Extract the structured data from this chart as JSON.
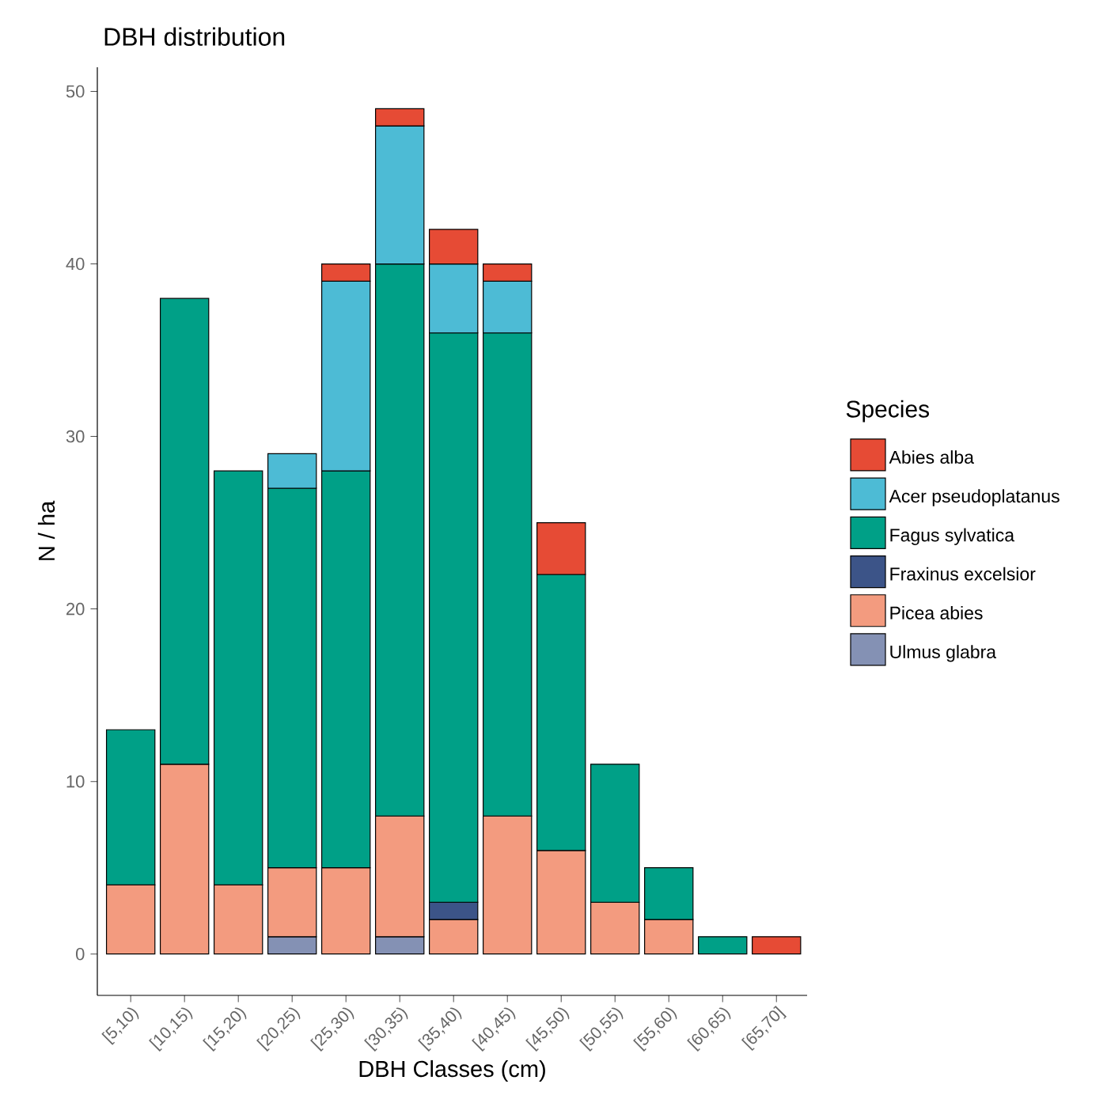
{
  "chart_data": {
    "type": "bar",
    "title": "DBH distribution",
    "xlabel": "DBH Classes (cm)",
    "ylabel": "N / ha",
    "legend_title": "Species",
    "categories": [
      "[5,10)",
      "[10,15)",
      "[15,20)",
      "[20,25)",
      "[25,30)",
      "[30,35)",
      "[35,40)",
      "[40,45)",
      "[45,50)",
      "[50,55)",
      "[55,60)",
      "[60,65)",
      "[65,70]"
    ],
    "stacked": true,
    "legend": "right",
    "grid": false,
    "ylim": [
      -2.4,
      51.4
    ],
    "yticks": [
      0,
      10,
      20,
      30,
      40,
      50
    ],
    "series": [
      {
        "name": "Ulmus glabra",
        "color": "#8491b4",
        "values": [
          null,
          null,
          null,
          1,
          null,
          1,
          null,
          null,
          null,
          null,
          null,
          null,
          null
        ]
      },
      {
        "name": "Picea abies",
        "color": "#f39b7f",
        "values": [
          4,
          11,
          4,
          4,
          5,
          7,
          2,
          8,
          6,
          3,
          2,
          null,
          null
        ]
      },
      {
        "name": "Fraxinus excelsior",
        "color": "#3c5488",
        "values": [
          null,
          null,
          null,
          null,
          null,
          null,
          1,
          null,
          null,
          null,
          null,
          null,
          null
        ]
      },
      {
        "name": "Fagus sylvatica",
        "color": "#00a087",
        "values": [
          9,
          27,
          24,
          22,
          23,
          32,
          33,
          28,
          16,
          8,
          3,
          1,
          null
        ]
      },
      {
        "name": "Acer pseudoplatanus",
        "color": "#4dbbd5",
        "values": [
          null,
          null,
          null,
          2,
          11,
          8,
          4,
          3,
          null,
          null,
          null,
          null,
          null
        ]
      },
      {
        "name": "Abies alba",
        "color": "#e64b35",
        "values": [
          null,
          null,
          null,
          null,
          1,
          1,
          2,
          1,
          3,
          null,
          null,
          null,
          1
        ]
      }
    ]
  }
}
